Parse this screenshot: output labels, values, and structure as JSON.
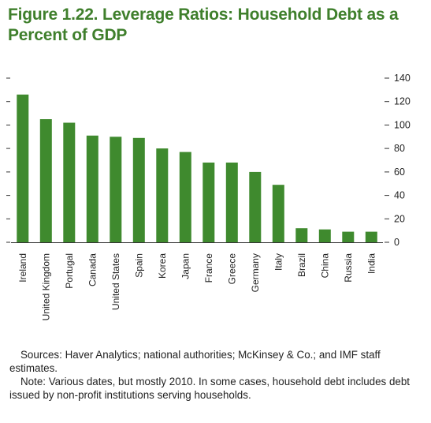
{
  "title": "Figure 1.22. Leverage Ratios: Household Debt as a Percent of GDP",
  "colors": {
    "bar": "#3f8a2e",
    "title": "#3f7f2c",
    "axis": "#333333"
  },
  "chart_data": {
    "type": "bar",
    "title": "Figure 1.22. Leverage Ratios: Household Debt as a Percent of GDP",
    "xlabel": "",
    "ylabel": "",
    "ylim": [
      0,
      140
    ],
    "yticks": [
      0,
      20,
      40,
      60,
      80,
      100,
      120,
      140
    ],
    "axis_side": "right",
    "grid": false,
    "categories": [
      "Ireland",
      "United Kingdom",
      "Portugal",
      "Canada",
      "United States",
      "Spain",
      "Korea",
      "Japan",
      "France",
      "Greece",
      "Germany",
      "Italy",
      "Brazil",
      "China",
      "Russia",
      "India"
    ],
    "values": [
      126,
      105,
      102,
      91,
      90,
      89,
      80,
      77,
      68,
      68,
      60,
      49,
      12,
      11,
      9,
      9
    ]
  },
  "notes": {
    "sources": "Sources: Haver Analytics; national authorities; McKinsey & Co.; and IMF staff estimates.",
    "note": "Note: Various dates, but mostly 2010. In some cases, household debt includes debt issued by non-profit institutions serving households."
  }
}
